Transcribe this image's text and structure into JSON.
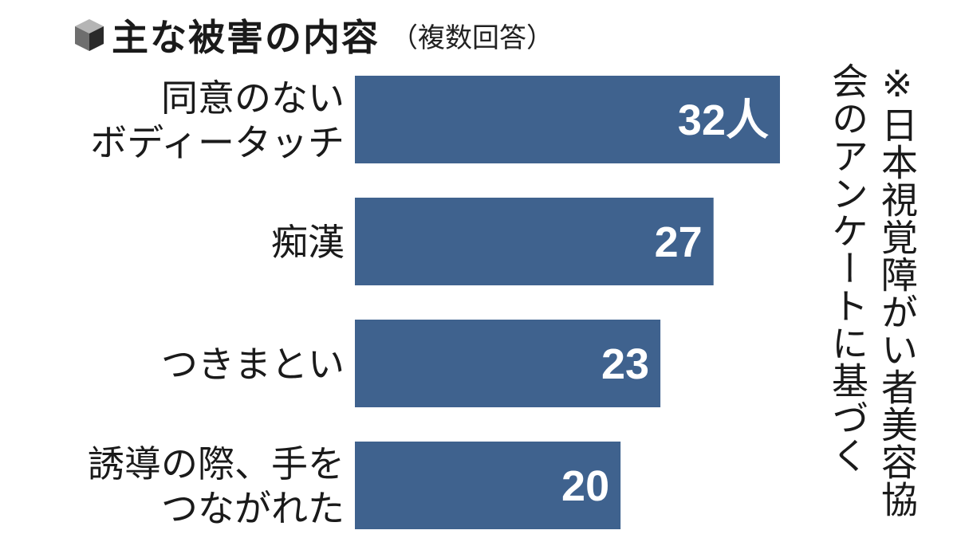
{
  "colors": {
    "bar": "#3f628e",
    "value_text": "#ffffff",
    "label_text": "#1a1a1a"
  },
  "chart_data": {
    "type": "bar",
    "orientation": "horizontal",
    "title": "主な被害の内容",
    "subtitle": "（複数回答）",
    "note": "※日本視覚障がい者美容協会のアンケートに基づく",
    "categories": [
      [
        "同意のない",
        "ボディータッチ"
      ],
      [
        "痴漢"
      ],
      [
        "つきまとい"
      ],
      [
        "誘導の際、手を",
        "つながれた"
      ]
    ],
    "values": [
      32,
      27,
      23,
      20
    ],
    "data_labels": [
      "32人",
      "27",
      "23",
      "20"
    ],
    "xlim": [
      0,
      32
    ]
  }
}
